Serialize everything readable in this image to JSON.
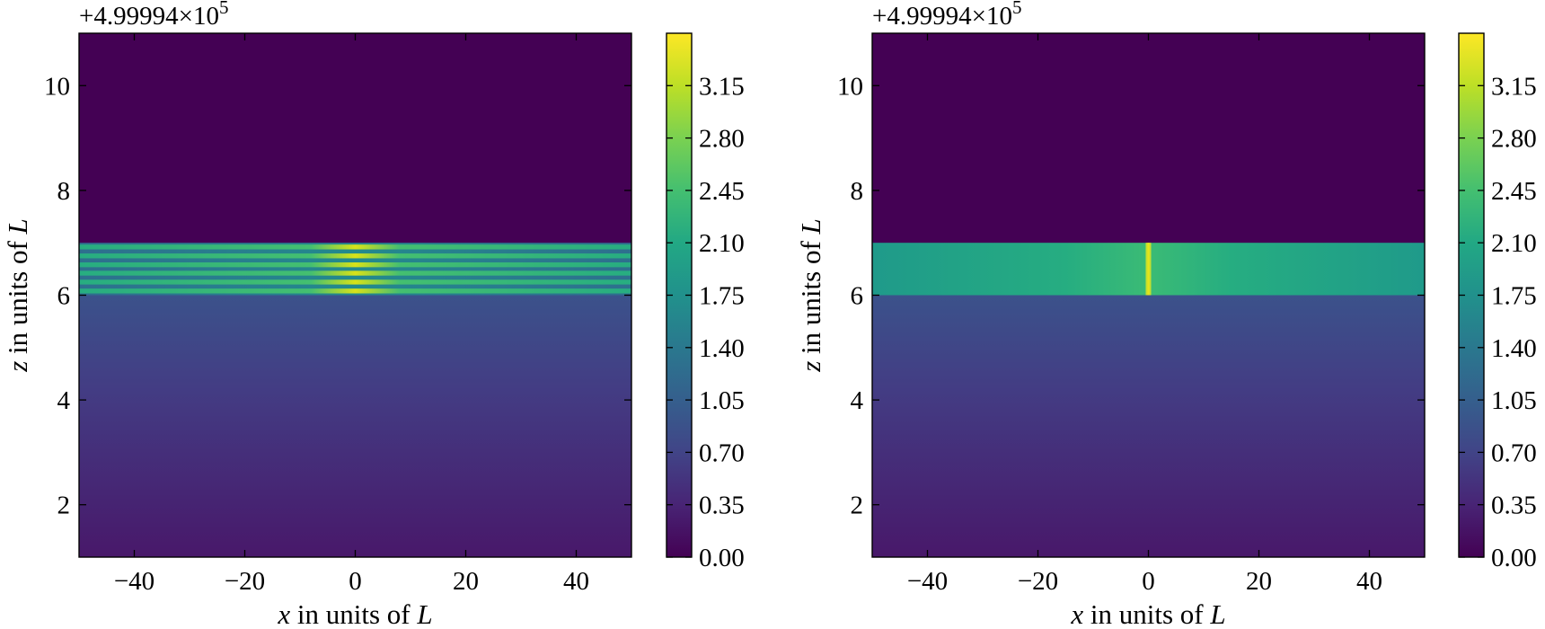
{
  "chart_data": [
    {
      "type": "heatmap",
      "xlabel_var": "x",
      "xlabel_rest": " in units of ",
      "xlabel_unit": "L",
      "ylabel_var": "z",
      "ylabel_rest": " in units of ",
      "ylabel_unit": "L",
      "offset_text_base": "+4.99994×10",
      "offset_text_exp": "5",
      "xlim": [
        -50,
        50
      ],
      "ylim": [
        1,
        11
      ],
      "xticks": [
        -40,
        -20,
        0,
        20,
        40
      ],
      "xtick_labels": [
        "−40",
        "−20",
        "0",
        "20",
        "40"
      ],
      "yticks": [
        2,
        4,
        6,
        8,
        10
      ],
      "ytick_labels": [
        "2",
        "4",
        "6",
        "8",
        "10"
      ],
      "colorbar": {
        "range": [
          0,
          3.5
        ],
        "ticks": [
          0.0,
          0.35,
          0.7,
          1.05,
          1.4,
          1.75,
          2.1,
          2.45,
          2.8,
          3.15
        ],
        "tick_labels": [
          "0.00",
          "0.35",
          "0.70",
          "1.05",
          "1.40",
          "1.75",
          "2.10",
          "2.45",
          "2.80",
          "3.15"
        ],
        "colormap": "viridis"
      },
      "regions": {
        "background_above_value": 0.0,
        "background_below_range": [
          0.3,
          0.85
        ],
        "band_z": [
          6.0,
          7.0
        ],
        "band_pattern": "horizontal stripes (6 bright lines) with peak at x=0",
        "band_stripes_z": [
          6.08,
          6.25,
          6.42,
          6.58,
          6.75,
          6.92
        ],
        "band_peak_value": 3.3,
        "band_base_value": 2.2
      }
    },
    {
      "type": "heatmap",
      "xlabel_var": "x",
      "xlabel_rest": " in units of ",
      "xlabel_unit": "L",
      "ylabel_var": "z",
      "ylabel_rest": " in units of ",
      "ylabel_unit": "L",
      "offset_text_base": "+4.99994×10",
      "offset_text_exp": "5",
      "xlim": [
        -50,
        50
      ],
      "ylim": [
        1,
        11
      ],
      "xticks": [
        -40,
        -20,
        0,
        20,
        40
      ],
      "xtick_labels": [
        "−40",
        "−20",
        "0",
        "20",
        "40"
      ],
      "yticks": [
        2,
        4,
        6,
        8,
        10
      ],
      "ytick_labels": [
        "2",
        "4",
        "6",
        "8",
        "10"
      ],
      "colorbar": {
        "range": [
          0,
          3.5
        ],
        "ticks": [
          0.0,
          0.35,
          0.7,
          1.05,
          1.4,
          1.75,
          2.1,
          2.45,
          2.8,
          3.15
        ],
        "tick_labels": [
          "0.00",
          "0.35",
          "0.70",
          "1.05",
          "1.40",
          "1.75",
          "2.10",
          "2.45",
          "2.80",
          "3.15"
        ],
        "colormap": "viridis"
      },
      "regions": {
        "background_above_value": 0.0,
        "background_below_range": [
          0.3,
          0.85
        ],
        "band_z": [
          6.0,
          7.0
        ],
        "band_pattern": "uniform band with bright vertical line at x=0",
        "band_peak_value": 3.0,
        "band_base_value": 2.2
      }
    }
  ]
}
